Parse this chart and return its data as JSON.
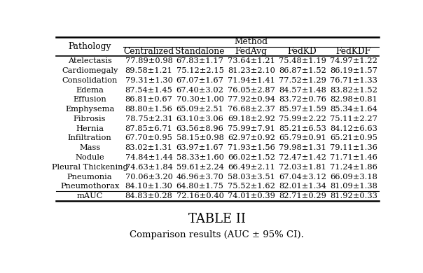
{
  "title": "TABLE II",
  "subtitle": "Cᴏᴍᴘᴀʀɪѕᴏɴ ʀᴇѕᴜʟᴛѕ (AUC ± 95% CI).",
  "subtitle_plain": "Comparison results (AUC ± 95% CI).",
  "group_header": "Method",
  "col_headers": [
    "Pathology",
    "Centralized",
    "Standalone",
    "FedAvg",
    "FedKD",
    "FedKDF"
  ],
  "rows": [
    [
      "Atelectasis",
      "77.89±0.98",
      "67.83±1.17",
      "73.64±1.21",
      "75.48±1.19",
      "74.97±1.22"
    ],
    [
      "Cardiomegaly",
      "89.58±1.21",
      "75.12±2.15",
      "81.23±2.10",
      "86.87±1.52",
      "86.19±1.57"
    ],
    [
      "Consolidation",
      "79.31±1.30",
      "67.07±1.67",
      "71.94±1.41",
      "77.52±1.29",
      "76.71±1.33"
    ],
    [
      "Edema",
      "87.54±1.45",
      "67.40±3.02",
      "76.05±2.87",
      "84.57±1.48",
      "83.82±1.52"
    ],
    [
      "Effusion",
      "86.81±0.67",
      "70.30±1.00",
      "77.92±0.94",
      "83.72±0.76",
      "82.98±0.81"
    ],
    [
      "Emphysema",
      "88.80±1.56",
      "65.09±2.51",
      "76.68±2.37",
      "85.97±1.59",
      "85.34±1.64"
    ],
    [
      "Fibrosis",
      "78.75±2.31",
      "63.10±3.06",
      "69.18±2.92",
      "75.99±2.22",
      "75.11±2.27"
    ],
    [
      "Hernia",
      "87.85±6.71",
      "63.56±8.96",
      "75.99±7.91",
      "85.21±6.53",
      "84.12±6.63"
    ],
    [
      "Infiltration",
      "67.70±0.95",
      "58.15±0.98",
      "62.97±0.92",
      "65.79±0.91",
      "65.21±0.95"
    ],
    [
      "Mass",
      "83.02±1.31",
      "63.97±1.67",
      "71.93±1.56",
      "79.98±1.31",
      "79.11±1.36"
    ],
    [
      "Nodule",
      "74.84±1.44",
      "58.33±1.60",
      "66.02±1.52",
      "72.47±1.42",
      "71.71±1.46"
    ],
    [
      "Pleural Thickening",
      "74.63±1.84",
      "59.61±2.24",
      "66.49±2.11",
      "72.03±1.81",
      "71.24±1.86"
    ],
    [
      "Pneumonia",
      "70.06±3.20",
      "46.96±3.70",
      "58.03±3.51",
      "67.04±3.12",
      "66.09±3.18"
    ],
    [
      "Pneumothorax",
      "84.10±1.30",
      "64.80±1.75",
      "75.52±1.62",
      "82.01±1.34",
      "81.09±1.38"
    ]
  ],
  "mauc_row": [
    "mAUC",
    "84.83±0.28",
    "72.16±0.40",
    "74.01±0.39",
    "82.71±0.29",
    "81.92±0.33"
  ],
  "background_color": "#ffffff",
  "text_color": "#000000",
  "font_size": 8.2,
  "header_font_size": 8.8,
  "title_font_size": 13.0,
  "subtitle_font_size": 9.5
}
